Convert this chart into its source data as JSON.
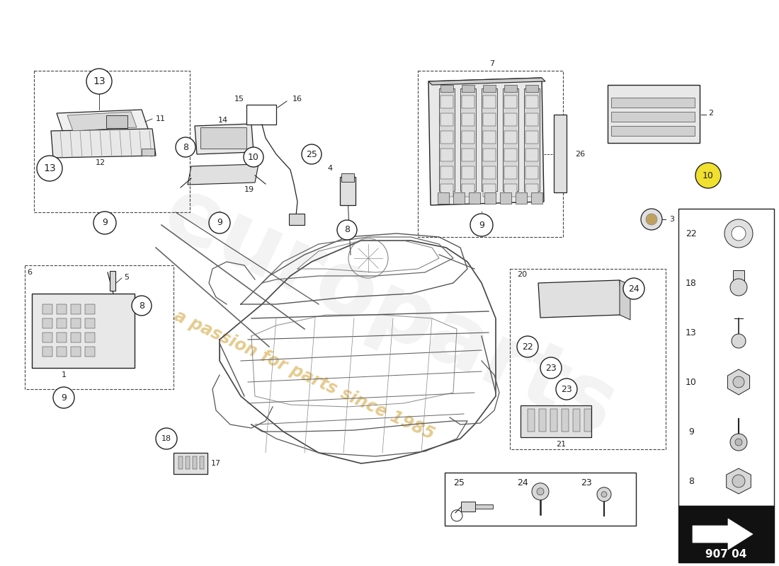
{
  "bg_color": "#ffffff",
  "line_color": "#222222",
  "gray1": "#999999",
  "gray2": "#bbbbbb",
  "gray3": "#666666",
  "watermark_color": "#d4a843",
  "watermark_text": "a passion for parts since 1985",
  "part_number": "907 04",
  "hardware_items": [
    "22",
    "18",
    "13",
    "10",
    "9",
    "8"
  ],
  "bottom_items": [
    "25",
    "24",
    "23"
  ]
}
